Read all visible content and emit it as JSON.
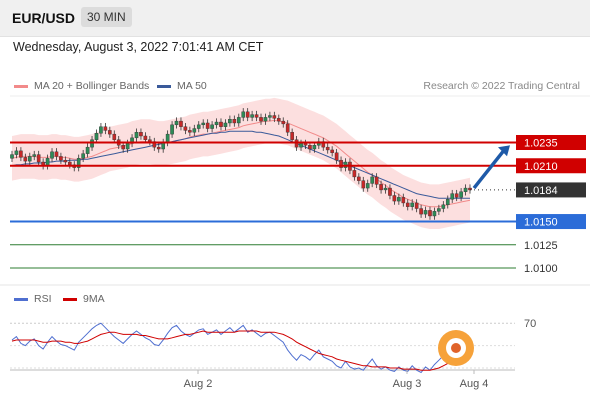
{
  "header": {
    "pair": "EUR/USD",
    "timeframe": "30 MIN"
  },
  "date_line": "Wednesday, August 3, 2022 7:01:41 AM CET",
  "legend": {
    "ma_label": "MA 20 + Bollinger Bands",
    "ma50_label": "MA 50",
    "rsi_label": "RSI",
    "rsi_ma_label": "9MA"
  },
  "credit": "Research © 2022 Trading Central",
  "colors": {
    "up": "#2e8b57",
    "down": "#c62828",
    "ma20": "#f28a8a",
    "ma50": "#3a5a9a",
    "resistance": "#d00000",
    "support": "#2b6cd8",
    "target": "#2e7d32",
    "current": "#333333",
    "arrow": "#1e5aa8",
    "rsi": "#4f6fd0",
    "rsi_ma": "#d00000"
  },
  "chart_data": [
    {
      "type": "candlestick",
      "title": "EUR/USD",
      "ylim": [
        1.0085,
        1.0285
      ],
      "x_labels": [
        "Aug 2",
        "Aug 3",
        "Aug 4"
      ],
      "current_price": "1.0184",
      "levels": [
        {
          "value": "1.0235",
          "kind": "resistance"
        },
        {
          "value": "1.0210",
          "kind": "resistance"
        },
        {
          "value": "1.0150",
          "kind": "support"
        },
        {
          "value": "1.0125",
          "kind": "target"
        },
        {
          "value": "1.0100",
          "kind": "target"
        }
      ],
      "close": [
        1.0222,
        1.0226,
        1.0219,
        1.0215,
        1.022,
        1.0222,
        1.0214,
        1.021,
        1.0218,
        1.0225,
        1.022,
        1.0216,
        1.0214,
        1.0211,
        1.0208,
        1.0218,
        1.0223,
        1.023,
        1.0238,
        1.0245,
        1.0252,
        1.0248,
        1.0244,
        1.0238,
        1.0232,
        1.0228,
        1.0234,
        1.024,
        1.0246,
        1.0242,
        1.0238,
        1.0236,
        1.023,
        1.0228,
        1.0235,
        1.0244,
        1.0254,
        1.0258,
        1.0252,
        1.0248,
        1.0246,
        1.025,
        1.0254,
        1.0256,
        1.025,
        1.0254,
        1.0257,
        1.0252,
        1.0256,
        1.026,
        1.0256,
        1.0262,
        1.0268,
        1.0262,
        1.0265,
        1.0262,
        1.0258,
        1.0262,
        1.0264,
        1.0261,
        1.0258,
        1.0255,
        1.0246,
        1.0238,
        1.023,
        1.0234,
        1.0232,
        1.0228,
        1.0232,
        1.0236,
        1.023,
        1.0227,
        1.0224,
        1.0216,
        1.0208,
        1.0214,
        1.0205,
        1.0198,
        1.0194,
        1.0186,
        1.0191,
        1.0198,
        1.019,
        1.0184,
        1.0186,
        1.0178,
        1.0172,
        1.0176,
        1.017,
        1.0166,
        1.017,
        1.0164,
        1.0158,
        1.0162,
        1.0156,
        1.0161,
        1.0164,
        1.0168,
        1.0174,
        1.018,
        1.0176,
        1.0182,
        1.0186,
        1.0184
      ],
      "sma20": [
        1.0218,
        1.0219,
        1.022,
        1.022,
        1.022,
        1.022,
        1.0219,
        1.0219,
        1.0219,
        1.022,
        1.022,
        1.0219,
        1.0219,
        1.0218,
        1.0217,
        1.0217,
        1.0218,
        1.0219,
        1.022,
        1.0222,
        1.0224,
        1.0226,
        1.0228,
        1.0229,
        1.023,
        1.0231,
        1.0232,
        1.0234,
        1.0235,
        1.0236,
        1.0236,
        1.0236,
        1.0235,
        1.0234,
        1.0234,
        1.0235,
        1.0236,
        1.0237,
        1.0238,
        1.0239,
        1.0241,
        1.0242,
        1.0243,
        1.0244,
        1.0244,
        1.0245,
        1.0246,
        1.0247,
        1.0248,
        1.0249,
        1.025,
        1.0251,
        1.0253,
        1.0254,
        1.0255,
        1.0256,
        1.0257,
        1.0258,
        1.0258,
        1.0259,
        1.0258,
        1.0257,
        1.0256,
        1.0254,
        1.0252,
        1.025,
        1.0248,
        1.0246,
        1.0244,
        1.0242,
        1.024,
        1.0237,
        1.0234,
        1.0231,
        1.0227,
        1.0223,
        1.0219,
        1.0215,
        1.0211,
        1.0207,
        1.0203,
        1.02,
        1.0196,
        1.0192,
        1.0189,
        1.0185,
        1.0182,
        1.0179,
        1.0176,
        1.0174,
        1.0172,
        1.017,
        1.0168,
        1.0167,
        1.0166,
        1.0166,
        1.0166,
        1.0167,
        1.0168,
        1.0169,
        1.017,
        1.0171,
        1.0172,
        1.0173
      ],
      "sma50": [
        1.021,
        1.0211,
        1.0211,
        1.0212,
        1.0212,
        1.0213,
        1.0213,
        1.0213,
        1.0214,
        1.0214,
        1.0215,
        1.0215,
        1.0215,
        1.0216,
        1.0216,
        1.0216,
        1.0217,
        1.0217,
        1.0218,
        1.0219,
        1.022,
        1.0221,
        1.0222,
        1.0223,
        1.0224,
        1.0225,
        1.0226,
        1.0227,
        1.0228,
        1.0229,
        1.023,
        1.0231,
        1.0232,
        1.0233,
        1.0234,
        1.0235,
        1.0236,
        1.0237,
        1.0238,
        1.0239,
        1.024,
        1.0241,
        1.0242,
        1.0243,
        1.0244,
        1.0245,
        1.0245,
        1.0246,
        1.0246,
        1.0247,
        1.0247,
        1.0247,
        1.0247,
        1.0247,
        1.0247,
        1.0246,
        1.0246,
        1.0245,
        1.0244,
        1.0243,
        1.0242,
        1.024,
        1.0238,
        1.0236,
        1.0234,
        1.0232,
        1.023,
        1.0228,
        1.0226,
        1.0224,
        1.0222,
        1.022,
        1.0218,
        1.0216,
        1.0214,
        1.0212,
        1.021,
        1.0208,
        1.0206,
        1.0204,
        1.0202,
        1.02,
        1.0198,
        1.0196,
        1.0194,
        1.0192,
        1.019,
        1.0188,
        1.0186,
        1.0184,
        1.0182,
        1.018,
        1.0179,
        1.0178,
        1.0177,
        1.0176,
        1.0175,
        1.0175,
        1.0175,
        1.0175,
        1.0175,
        1.0175,
        1.0175,
        1.0175
      ]
    },
    {
      "type": "line",
      "title": "RSI",
      "ylim": [
        30,
        80
      ],
      "y_ticks": [
        "70"
      ],
      "rsi": [
        55,
        58,
        52,
        50,
        54,
        56,
        50,
        47,
        53,
        58,
        54,
        51,
        50,
        48,
        46,
        53,
        57,
        61,
        65,
        68,
        70,
        66,
        62,
        58,
        55,
        52,
        56,
        60,
        63,
        60,
        57,
        55,
        51,
        50,
        55,
        61,
        66,
        68,
        63,
        60,
        58,
        61,
        64,
        65,
        60,
        62,
        64,
        60,
        63,
        66,
        62,
        65,
        68,
        62,
        64,
        61,
        58,
        61,
        62,
        59,
        56,
        53,
        46,
        41,
        37,
        42,
        40,
        37,
        42,
        46,
        40,
        38,
        36,
        32,
        30,
        36,
        31,
        29,
        30,
        28,
        33,
        38,
        32,
        29,
        31,
        28,
        27,
        31,
        28,
        27,
        32,
        28,
        26,
        31,
        28,
        33,
        37,
        41,
        46,
        52,
        49,
        53,
        57,
        55
      ],
      "rsi_ma": [
        54,
        55,
        55,
        55,
        55,
        55,
        54,
        53,
        53,
        54,
        54,
        54,
        53,
        53,
        52,
        52,
        53,
        54,
        56,
        58,
        60,
        61,
        62,
        62,
        61,
        60,
        60,
        60,
        60,
        59,
        59,
        58,
        57,
        56,
        56,
        56,
        57,
        58,
        59,
        60,
        60,
        61,
        62,
        63,
        62,
        62,
        62,
        62,
        62,
        62,
        62,
        63,
        63,
        63,
        63,
        63,
        62,
        62,
        62,
        62,
        61,
        60,
        58,
        56,
        53,
        51,
        49,
        47,
        45,
        43,
        42,
        41,
        40,
        38,
        37,
        36,
        35,
        34,
        33,
        32,
        32,
        31,
        31,
        31,
        31,
        30,
        30,
        30,
        29,
        29,
        29,
        29,
        28,
        28,
        28,
        29,
        30,
        32,
        34,
        37,
        40,
        43,
        46,
        49
      ]
    }
  ]
}
